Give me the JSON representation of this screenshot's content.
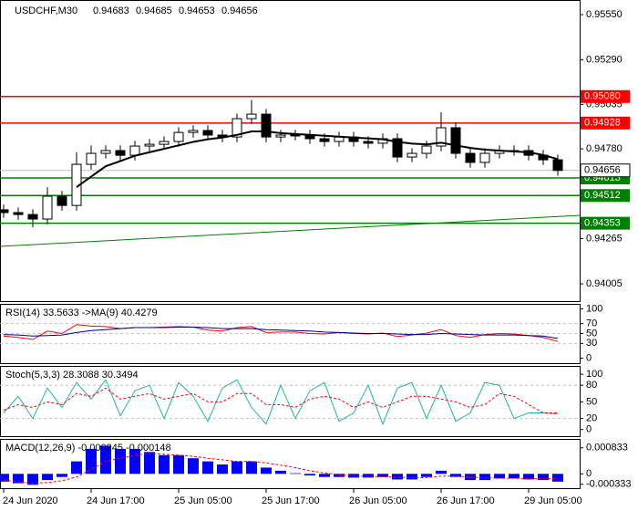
{
  "chart_data": [
    {
      "type": "candlestick",
      "title": "USDCHF,M30",
      "title_values": [
        0.94683,
        0.94685,
        0.94653,
        0.94656
      ],
      "categories": [
        "24 Jun 2020",
        null,
        null,
        null,
        null,
        null,
        "24 Jun 17:00",
        null,
        null,
        null,
        null,
        null,
        "25 Jun 05:00",
        null,
        null,
        null,
        null,
        null,
        "25 Jun 17:00",
        null,
        null,
        null,
        null,
        null,
        "26 Jun 05:00",
        null,
        null,
        null,
        null,
        null,
        "26 Jun 17:00",
        null,
        null,
        null,
        null,
        null,
        "29 Jun 05:00",
        null,
        null
      ],
      "open": [
        0.9443,
        0.94414,
        0.94403,
        0.94377,
        0.94508,
        0.94455,
        0.94691,
        0.94754,
        0.9477,
        0.94743,
        0.94796,
        0.94806,
        0.94822,
        0.94874,
        0.94885,
        0.94859,
        0.94848,
        0.94953,
        0.94979,
        0.94848,
        0.94859,
        0.94859,
        0.94838,
        0.94822,
        0.94848,
        0.94822,
        0.94812,
        0.94838,
        0.94733,
        0.94754,
        0.94796,
        0.94901,
        0.94754,
        0.94702,
        0.94754,
        0.9477,
        0.9477,
        0.94743,
        0.94717
      ],
      "high": [
        0.9446,
        0.94444,
        0.94433,
        0.9456,
        0.94538,
        0.9476,
        0.948,
        0.948,
        0.948,
        0.94826,
        0.94836,
        0.94852,
        0.94904,
        0.94915,
        0.94915,
        0.94889,
        0.94983,
        0.9506,
        0.95009,
        0.94889,
        0.94889,
        0.94889,
        0.94868,
        0.94878,
        0.94878,
        0.94852,
        0.94868,
        0.94868,
        0.94784,
        0.94826,
        0.9499,
        0.94931,
        0.94784,
        0.94784,
        0.948,
        0.948,
        0.948,
        0.94773,
        0.94747
      ],
      "low": [
        0.94384,
        0.94373,
        0.9433,
        0.94347,
        0.94425,
        0.94425,
        0.94661,
        0.94724,
        0.94713,
        0.94713,
        0.94766,
        0.94776,
        0.94792,
        0.94844,
        0.94829,
        0.94818,
        0.94818,
        0.94923,
        0.94818,
        0.94818,
        0.94829,
        0.94808,
        0.94792,
        0.94792,
        0.94792,
        0.94782,
        0.94782,
        0.94703,
        0.94703,
        0.94724,
        0.94766,
        0.94724,
        0.94672,
        0.94672,
        0.94724,
        0.9474,
        0.94713,
        0.94687,
        0.94626
      ],
      "close": [
        0.94414,
        0.94403,
        0.94377,
        0.94508,
        0.94455,
        0.94691,
        0.94754,
        0.9477,
        0.94743,
        0.94796,
        0.94806,
        0.94822,
        0.94874,
        0.94885,
        0.94859,
        0.94848,
        0.94953,
        0.94979,
        0.94848,
        0.94859,
        0.94859,
        0.94838,
        0.94822,
        0.94848,
        0.94822,
        0.94812,
        0.94838,
        0.94733,
        0.94754,
        0.94796,
        0.94901,
        0.94754,
        0.94702,
        0.94754,
        0.9477,
        0.9477,
        0.94743,
        0.94717,
        0.94656
      ],
      "up_color": "#ffffff",
      "down_color": "#000000",
      "ma": {
        "color": "#000000",
        "values": [
          null,
          null,
          null,
          null,
          null,
          0.9456,
          0.9462,
          0.9468,
          0.9471,
          0.9474,
          0.9476,
          0.9478,
          0.948,
          0.9482,
          0.94835,
          0.94845,
          0.9486,
          0.9488,
          0.9488,
          0.9487,
          0.94865,
          0.9486,
          0.94855,
          0.9485,
          0.94845,
          0.9484,
          0.94835,
          0.9482,
          0.9481,
          0.94805,
          0.94815,
          0.948,
          0.94785,
          0.94775,
          0.9477,
          0.94765,
          0.9476,
          0.94745,
          0.9472
        ]
      },
      "levels": [
        {
          "value": 0.9508,
          "label": "0.95080",
          "color": "#ff0000"
        },
        {
          "value": 0.94928,
          "label": "0.94928",
          "color": "#ff0000"
        },
        {
          "value": 0.94613,
          "label": "0.94613",
          "color": "#008000"
        },
        {
          "value": 0.94512,
          "label": "0.94512",
          "color": "#008000"
        },
        {
          "value": 0.94353,
          "label": "0.94353",
          "color": "#008000"
        }
      ],
      "current_price": 0.94656,
      "trendline": {
        "color": "#008000",
        "x": [
          -0.25,
          39.5
        ],
        "y": [
          0.9422,
          0.94398
        ]
      },
      "xlim": [
        -0.25,
        39.5
      ],
      "ylim": [
        0.93906,
        0.95634
      ],
      "yticks": [
        {
          "value": 0.9555,
          "label": "0.95550"
        },
        {
          "value": 0.9529,
          "label": "0.95290"
        },
        0.95035,
        {
          "value": 0.9478,
          "label": "0.94780"
        },
        0.94265,
        {
          "value": 0.94005,
          "label": "0.94005"
        }
      ]
    },
    {
      "type": "line",
      "title": "RSI(14) 33.5633  ->MA(9) 40.4279",
      "ylim": [
        -10,
        110
      ],
      "yticks": [
        0,
        30,
        50,
        70,
        100
      ],
      "grid_lines": [
        30,
        50,
        70
      ],
      "series": [
        {
          "color": "#ff0000",
          "values": [
            45,
            42,
            38,
            55,
            50,
            68,
            65,
            64,
            60,
            62,
            62,
            63,
            64,
            63,
            57,
            55,
            62,
            64,
            52,
            53,
            53,
            50,
            49,
            52,
            50,
            49,
            51,
            44,
            47,
            51,
            58,
            46,
            42,
            48,
            50,
            49,
            46,
            42,
            34
          ]
        },
        {
          "color": "#00008b",
          "values": [
            48,
            47,
            45,
            46,
            47,
            52,
            56,
            58,
            60,
            62,
            62,
            62,
            63,
            63,
            62,
            60,
            60,
            60,
            58,
            57,
            56,
            55,
            53,
            52,
            51,
            50,
            50,
            49,
            48,
            48,
            50,
            49,
            48,
            47,
            47,
            47,
            46,
            45,
            40
          ]
        }
      ]
    },
    {
      "type": "line",
      "title": "Stoch(5,3,3) 28.3088 30.3494",
      "ylim": [
        -12,
        115
      ],
      "yticks": [
        0,
        20,
        50,
        80,
        100
      ],
      "grid_lines": [
        20,
        80
      ],
      "series": [
        {
          "color": "#20b2aa",
          "values": [
            30,
            60,
            20,
            75,
            40,
            85,
            55,
            90,
            25,
            70,
            80,
            20,
            85,
            60,
            15,
            75,
            90,
            40,
            10,
            80,
            20,
            70,
            85,
            15,
            30,
            80,
            10,
            75,
            85,
            20,
            80,
            15,
            30,
            85,
            80,
            20,
            30,
            30,
            28
          ]
        },
        {
          "color": "#ff0000",
          "dash": true,
          "values": [
            35,
            45,
            40,
            50,
            45,
            65,
            60,
            75,
            55,
            60,
            65,
            55,
            60,
            65,
            50,
            50,
            65,
            65,
            45,
            45,
            40,
            55,
            60,
            55,
            40,
            50,
            40,
            50,
            60,
            60,
            55,
            50,
            40,
            45,
            65,
            60,
            45,
            30,
            30
          ]
        }
      ]
    },
    {
      "type": "bar",
      "title": "MACD(12,26,9) -0.000245 -0.000148",
      "ylim": [
        -0.00046,
        0.00112
      ],
      "yticks": [
        -0.000333,
        0,
        0.000833
      ],
      "color": "#0000ff",
      "values": [
        -0.00025,
        -0.0003,
        -0.00035,
        -0.0002,
        -0.0001,
        0.0004,
        0.0008,
        0.0009,
        0.0008,
        0.0008,
        0.0007,
        0.0006,
        0.0006,
        0.0005,
        0.0004,
        0.0003,
        0.0004,
        0.0004,
        0.0002,
        0.0001,
        2e-05,
        -5e-05,
        -0.0001,
        -0.0001,
        -0.00012,
        -0.00012,
        -0.0001,
        -0.00018,
        -0.00018,
        -0.0001,
        0.0001,
        -0.0001,
        -0.0002,
        -0.0002,
        -0.00015,
        -0.00015,
        -0.00018,
        -0.0002,
        -0.00025
      ],
      "signal": {
        "color": "#ff0000",
        "dash": true,
        "values": [
          -0.0002,
          -0.00025,
          -0.0003,
          -0.00028,
          -0.00022,
          -0.0001,
          0.00015,
          0.0004,
          0.0005,
          0.0006,
          0.00065,
          0.00063,
          0.0006,
          0.00056,
          0.0005,
          0.00045,
          0.0004,
          0.0004,
          0.00035,
          0.00028,
          0.0002,
          0.0001,
          3e-05,
          -3e-05,
          -6e-05,
          -8e-05,
          -9e-05,
          -0.00011,
          -0.00013,
          -0.00012,
          -7e-05,
          -7e-05,
          -0.0001,
          -0.00013,
          -0.00014,
          -0.00014,
          -0.00015,
          -0.00016,
          -0.000148
        ]
      }
    }
  ]
}
